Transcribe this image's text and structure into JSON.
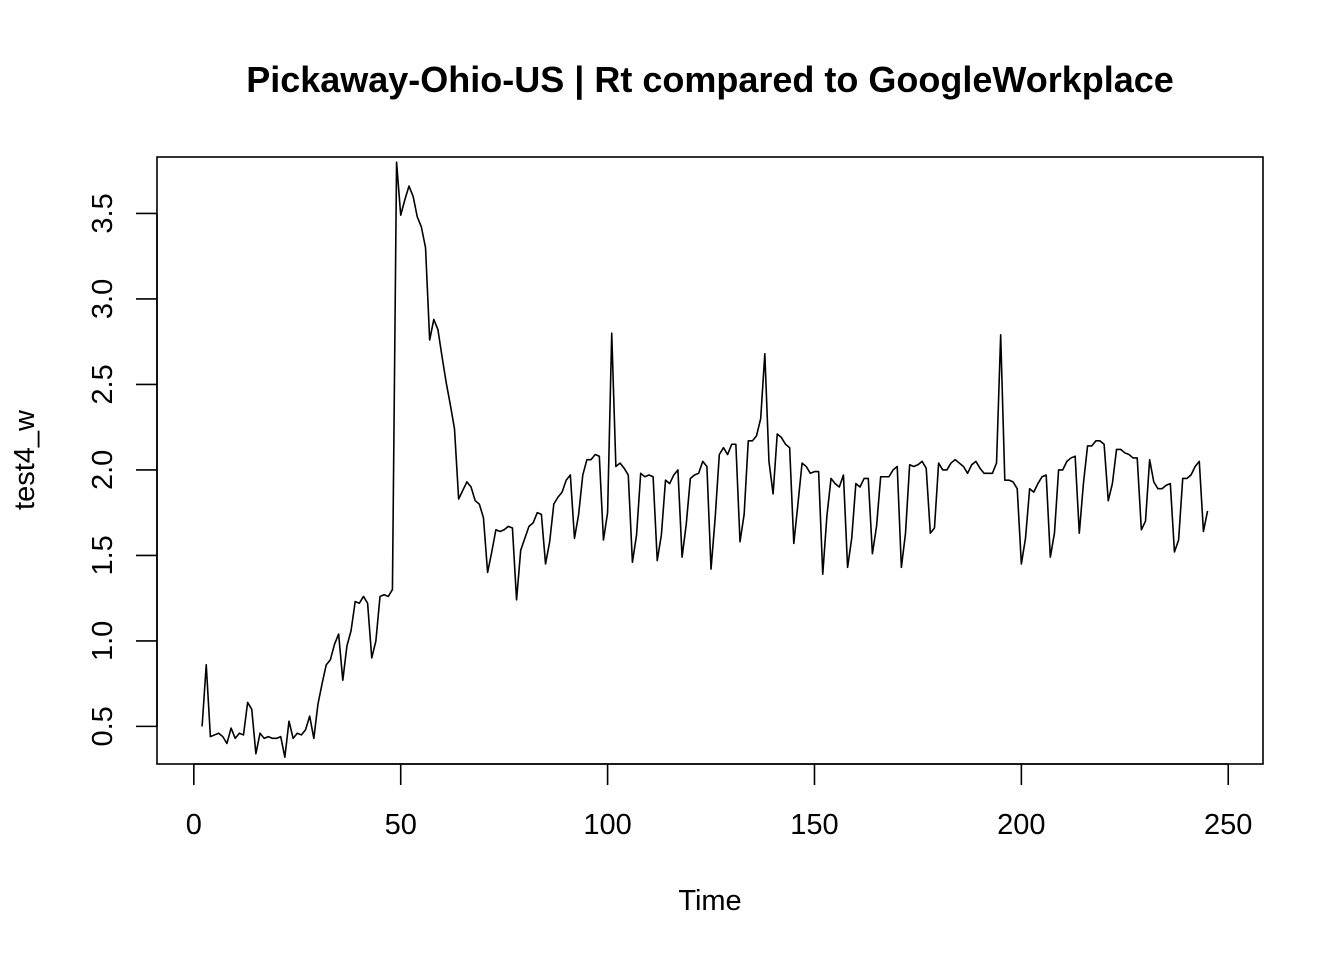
{
  "chart_data": {
    "type": "line",
    "title": "Pickaway-Ohio-US | Rt compared to GoogleWorkplace",
    "xlabel": "Time",
    "ylabel": "test4_w",
    "xlim": [
      -8.9,
      258.4
    ],
    "ylim": [
      0.28,
      3.83
    ],
    "grid": false,
    "xticks": [
      {
        "value": 0,
        "label": "0"
      },
      {
        "value": 50,
        "label": "50"
      },
      {
        "value": 100,
        "label": "100"
      },
      {
        "value": 150,
        "label": "150"
      },
      {
        "value": 200,
        "label": "200"
      },
      {
        "value": 250,
        "label": "250"
      }
    ],
    "yticks": [
      {
        "value": 0.5,
        "label": "0.5"
      },
      {
        "value": 1.0,
        "label": "1.0"
      },
      {
        "value": 1.5,
        "label": "1.5"
      },
      {
        "value": 2.0,
        "label": "2.0"
      },
      {
        "value": 2.5,
        "label": "2.5"
      },
      {
        "value": 3.0,
        "label": "3.0"
      },
      {
        "value": 3.5,
        "label": "3.5"
      }
    ],
    "series": [
      {
        "points": [
          [
            2,
            0.5
          ],
          [
            3,
            0.86
          ],
          [
            4,
            0.44
          ],
          [
            5,
            0.45
          ],
          [
            6,
            0.46
          ],
          [
            7,
            0.44
          ],
          [
            8,
            0.4
          ],
          [
            9,
            0.49
          ],
          [
            10,
            0.43
          ],
          [
            11,
            0.46
          ],
          [
            12,
            0.45
          ],
          [
            13,
            0.64
          ],
          [
            14,
            0.6
          ],
          [
            15,
            0.34
          ],
          [
            16,
            0.46
          ],
          [
            17,
            0.43
          ],
          [
            18,
            0.44
          ],
          [
            19,
            0.43
          ],
          [
            20,
            0.43
          ],
          [
            21,
            0.44
          ],
          [
            22,
            0.32
          ],
          [
            23,
            0.53
          ],
          [
            24,
            0.43
          ],
          [
            25,
            0.46
          ],
          [
            26,
            0.45
          ],
          [
            27,
            0.48
          ],
          [
            28,
            0.56
          ],
          [
            29,
            0.43
          ],
          [
            30,
            0.63
          ],
          [
            31,
            0.75
          ],
          [
            32,
            0.86
          ],
          [
            33,
            0.89
          ],
          [
            34,
            0.98
          ],
          [
            35,
            1.04
          ],
          [
            36,
            0.77
          ],
          [
            37,
            0.97
          ],
          [
            38,
            1.06
          ],
          [
            39,
            1.23
          ],
          [
            40,
            1.22
          ],
          [
            41,
            1.26
          ],
          [
            42,
            1.22
          ],
          [
            43,
            0.9
          ],
          [
            44,
            1.0
          ],
          [
            45,
            1.26
          ],
          [
            46,
            1.27
          ],
          [
            47,
            1.26
          ],
          [
            48,
            1.3
          ],
          [
            49,
            3.8
          ],
          [
            50,
            3.49
          ],
          [
            51,
            3.58
          ],
          [
            52,
            3.66
          ],
          [
            53,
            3.6
          ],
          [
            54,
            3.48
          ],
          [
            55,
            3.42
          ],
          [
            56,
            3.3
          ],
          [
            57,
            2.76
          ],
          [
            58,
            2.88
          ],
          [
            59,
            2.82
          ],
          [
            60,
            2.66
          ],
          [
            61,
            2.51
          ],
          [
            62,
            2.38
          ],
          [
            63,
            2.24
          ],
          [
            64,
            1.83
          ],
          [
            65,
            1.88
          ],
          [
            66,
            1.93
          ],
          [
            67,
            1.9
          ],
          [
            68,
            1.82
          ],
          [
            69,
            1.8
          ],
          [
            70,
            1.72
          ],
          [
            71,
            1.4
          ],
          [
            72,
            1.52
          ],
          [
            73,
            1.65
          ],
          [
            74,
            1.64
          ],
          [
            75,
            1.65
          ],
          [
            76,
            1.67
          ],
          [
            77,
            1.66
          ],
          [
            78,
            1.24
          ],
          [
            79,
            1.53
          ],
          [
            80,
            1.6
          ],
          [
            81,
            1.67
          ],
          [
            82,
            1.69
          ],
          [
            83,
            1.75
          ],
          [
            84,
            1.74
          ],
          [
            85,
            1.45
          ],
          [
            86,
            1.58
          ],
          [
            87,
            1.8
          ],
          [
            88,
            1.84
          ],
          [
            89,
            1.87
          ],
          [
            90,
            1.94
          ],
          [
            91,
            1.97
          ],
          [
            92,
            1.6
          ],
          [
            93,
            1.74
          ],
          [
            94,
            1.97
          ],
          [
            95,
            2.06
          ],
          [
            96,
            2.06
          ],
          [
            97,
            2.09
          ],
          [
            98,
            2.08
          ],
          [
            99,
            1.59
          ],
          [
            100,
            1.75
          ],
          [
            101,
            2.8
          ],
          [
            102,
            2.02
          ],
          [
            103,
            2.04
          ],
          [
            104,
            2.01
          ],
          [
            105,
            1.97
          ],
          [
            106,
            1.46
          ],
          [
            107,
            1.62
          ],
          [
            108,
            1.98
          ],
          [
            109,
            1.96
          ],
          [
            110,
            1.97
          ],
          [
            111,
            1.96
          ],
          [
            112,
            1.47
          ],
          [
            113,
            1.62
          ],
          [
            114,
            1.94
          ],
          [
            115,
            1.92
          ],
          [
            116,
            1.97
          ],
          [
            117,
            2.0
          ],
          [
            118,
            1.49
          ],
          [
            119,
            1.68
          ],
          [
            120,
            1.95
          ],
          [
            121,
            1.97
          ],
          [
            122,
            1.98
          ],
          [
            123,
            2.05
          ],
          [
            124,
            2.02
          ],
          [
            125,
            1.42
          ],
          [
            126,
            1.72
          ],
          [
            127,
            2.09
          ],
          [
            128,
            2.13
          ],
          [
            129,
            2.09
          ],
          [
            130,
            2.15
          ],
          [
            131,
            2.15
          ],
          [
            132,
            1.58
          ],
          [
            133,
            1.74
          ],
          [
            134,
            2.17
          ],
          [
            135,
            2.17
          ],
          [
            136,
            2.2
          ],
          [
            137,
            2.3
          ],
          [
            138,
            2.68
          ],
          [
            139,
            2.05
          ],
          [
            140,
            1.86
          ],
          [
            141,
            2.21
          ],
          [
            142,
            2.19
          ],
          [
            143,
            2.15
          ],
          [
            144,
            2.13
          ],
          [
            145,
            1.57
          ],
          [
            146,
            1.8
          ],
          [
            147,
            2.04
          ],
          [
            148,
            2.02
          ],
          [
            149,
            1.98
          ],
          [
            150,
            1.99
          ],
          [
            151,
            1.99
          ],
          [
            152,
            1.39
          ],
          [
            153,
            1.73
          ],
          [
            154,
            1.95
          ],
          [
            155,
            1.92
          ],
          [
            156,
            1.9
          ],
          [
            157,
            1.97
          ],
          [
            158,
            1.43
          ],
          [
            159,
            1.6
          ],
          [
            160,
            1.92
          ],
          [
            161,
            1.9
          ],
          [
            162,
            1.95
          ],
          [
            163,
            1.95
          ],
          [
            164,
            1.51
          ],
          [
            165,
            1.67
          ],
          [
            166,
            1.96
          ],
          [
            167,
            1.96
          ],
          [
            168,
            1.96
          ],
          [
            169,
            2.0
          ],
          [
            170,
            2.02
          ],
          [
            171,
            1.43
          ],
          [
            172,
            1.63
          ],
          [
            173,
            2.03
          ],
          [
            174,
            2.02
          ],
          [
            175,
            2.03
          ],
          [
            176,
            2.05
          ],
          [
            177,
            2.01
          ],
          [
            178,
            1.63
          ],
          [
            179,
            1.66
          ],
          [
            180,
            2.04
          ],
          [
            181,
            2.0
          ],
          [
            182,
            2.0
          ],
          [
            183,
            2.04
          ],
          [
            184,
            2.06
          ],
          [
            185,
            2.04
          ],
          [
            186,
            2.02
          ],
          [
            187,
            1.98
          ],
          [
            188,
            2.03
          ],
          [
            189,
            2.05
          ],
          [
            190,
            2.01
          ],
          [
            191,
            1.98
          ],
          [
            192,
            1.98
          ],
          [
            193,
            1.98
          ],
          [
            194,
            2.04
          ],
          [
            195,
            2.79
          ],
          [
            196,
            1.94
          ],
          [
            197,
            1.94
          ],
          [
            198,
            1.93
          ],
          [
            199,
            1.89
          ],
          [
            200,
            1.45
          ],
          [
            201,
            1.6
          ],
          [
            202,
            1.89
          ],
          [
            203,
            1.87
          ],
          [
            204,
            1.92
          ],
          [
            205,
            1.96
          ],
          [
            206,
            1.97
          ],
          [
            207,
            1.49
          ],
          [
            208,
            1.63
          ],
          [
            209,
            2.0
          ],
          [
            210,
            2.0
          ],
          [
            211,
            2.05
          ],
          [
            212,
            2.07
          ],
          [
            213,
            2.08
          ],
          [
            214,
            1.63
          ],
          [
            215,
            1.92
          ],
          [
            216,
            2.14
          ],
          [
            217,
            2.14
          ],
          [
            218,
            2.17
          ],
          [
            219,
            2.17
          ],
          [
            220,
            2.15
          ],
          [
            221,
            1.82
          ],
          [
            222,
            1.92
          ],
          [
            223,
            2.12
          ],
          [
            224,
            2.12
          ],
          [
            225,
            2.1
          ],
          [
            226,
            2.09
          ],
          [
            227,
            2.07
          ],
          [
            228,
            2.07
          ],
          [
            229,
            1.65
          ],
          [
            230,
            1.7
          ],
          [
            231,
            2.06
          ],
          [
            232,
            1.93
          ],
          [
            233,
            1.89
          ],
          [
            234,
            1.89
          ],
          [
            235,
            1.91
          ],
          [
            236,
            1.92
          ],
          [
            237,
            1.52
          ],
          [
            238,
            1.59
          ],
          [
            239,
            1.95
          ],
          [
            240,
            1.95
          ],
          [
            241,
            1.97
          ],
          [
            242,
            2.02
          ],
          [
            243,
            2.05
          ],
          [
            244,
            1.64
          ],
          [
            245,
            1.76
          ]
        ]
      }
    ]
  }
}
